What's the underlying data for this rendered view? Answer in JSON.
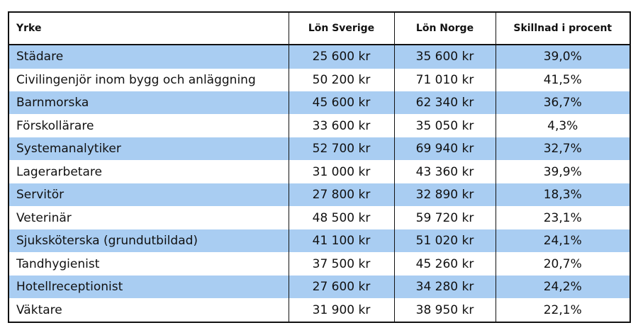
{
  "colors": {
    "stripe": "#a9cdf2",
    "border": "#111111"
  },
  "headers": [
    "Yrke",
    "Lön Sverige",
    "Lön Norge",
    "Skillnad i procent"
  ],
  "rows": [
    [
      "Städare",
      "25 600 kr",
      "35 600 kr",
      "39,0%"
    ],
    [
      "Civilingenjör inom bygg och anläggning",
      "50 200 kr",
      "71 010 kr",
      "41,5%"
    ],
    [
      "Barnmorska",
      "45 600 kr",
      "62 340 kr",
      "36,7%"
    ],
    [
      "Förskollärare",
      "33 600 kr",
      "35 050 kr",
      "4,3%"
    ],
    [
      "Systemanalytiker",
      "52 700 kr",
      "69 940 kr",
      "32,7%"
    ],
    [
      "Lagerarbetare",
      "31 000 kr",
      "43 360 kr",
      "39,9%"
    ],
    [
      "Servitör",
      "27 800 kr",
      "32 890 kr",
      "18,3%"
    ],
    [
      "Veterinär",
      "48 500 kr",
      "59 720 kr",
      "23,1%"
    ],
    [
      "Sjuksköterska (grundutbildad)",
      "41 100 kr",
      "51 020 kr",
      "24,1%"
    ],
    [
      "Tandhygienist",
      "37 500 kr",
      "45 260 kr",
      "20,7%"
    ],
    [
      "Hotellreceptionist",
      "27 600 kr",
      "34 280 kr",
      "24,2%"
    ],
    [
      "Väktare",
      "31 900 kr",
      "38 950 kr",
      "22,1%"
    ]
  ]
}
